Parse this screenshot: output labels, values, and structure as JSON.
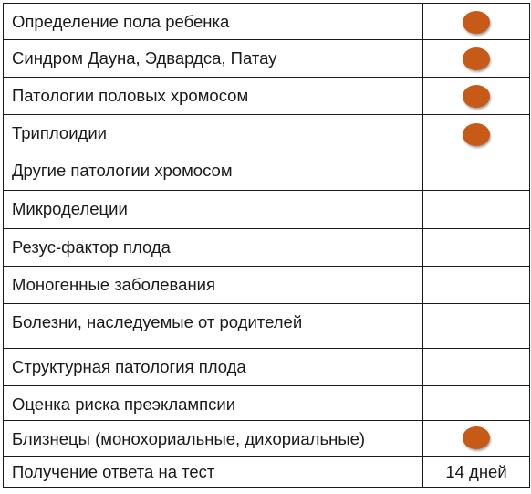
{
  "rows": [
    {
      "label": "Определение пола ребенка",
      "mark": "dot"
    },
    {
      "label": "Синдром Дауна, Эдвардса, Патау",
      "mark": "dot"
    },
    {
      "label": "Патологии половых хромосом",
      "mark": "dot"
    },
    {
      "label": "Триплоидии",
      "mark": "dot"
    },
    {
      "label": "Другие патологии хромосом",
      "mark": ""
    },
    {
      "label": "Микроделеции",
      "mark": ""
    },
    {
      "label": "Резус-фактор плода",
      "mark": ""
    },
    {
      "label": "Моногенные заболевания",
      "mark": ""
    },
    {
      "label": "Болезни, наследуемые от родителей",
      "mark": ""
    },
    {
      "label": "Структурная патология плода",
      "mark": ""
    },
    {
      "label": "Оценка риска преэклампсии",
      "mark": ""
    },
    {
      "label": "Близнецы (монохориальные, дихориальные)",
      "mark": "dot"
    },
    {
      "label": "Получение ответа на тест",
      "mark": "14 дней"
    }
  ],
  "colors": {
    "dot": "#c85a17",
    "border": "#1a1a1a",
    "text": "#1a1a1a"
  }
}
